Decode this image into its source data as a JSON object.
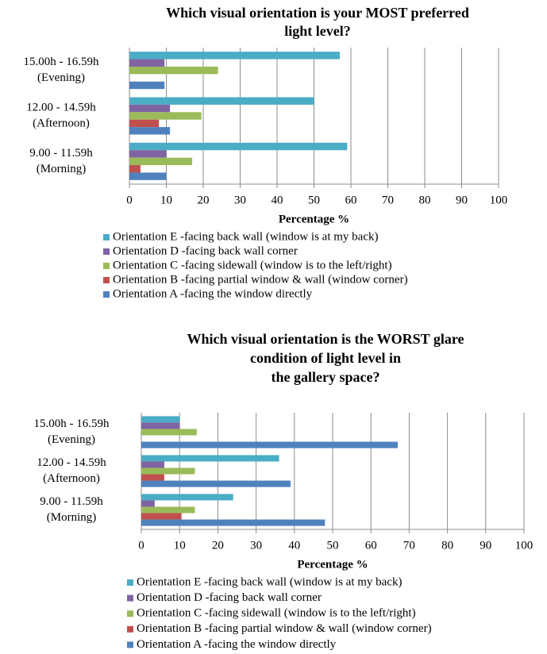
{
  "chart_data": [
    {
      "type": "bar",
      "orientation": "horizontal",
      "title": [
        "Which visual orientation  is your MOST preferred",
        "light level?"
      ],
      "xlabel": "Percentage %",
      "categories": [
        [
          "15.00h - 16.59h",
          "(Evening)"
        ],
        [
          "12.00 - 14.59h",
          "(Afternoon)"
        ],
        [
          "9.00 - 11.59h",
          "(Morning)"
        ]
      ],
      "series": [
        {
          "name": "Orientation E -facing back wall (window is at my back)",
          "color": "#4bacc6",
          "values": [
            57,
            50,
            59
          ]
        },
        {
          "name": "Orientation D -facing back wall corner",
          "color": "#8064a2",
          "values": [
            9.5,
            11,
            10
          ]
        },
        {
          "name": "Orientation C -facing sidewall (window is to the left/right)",
          "color": "#9bbb59",
          "values": [
            24,
            19.5,
            17
          ]
        },
        {
          "name": "Orientation B -facing partial window & wall (window corner)",
          "color": "#c0504d",
          "values": [
            0,
            8,
            3
          ]
        },
        {
          "name": "Orientation A -facing the window directly",
          "color": "#4f81bd",
          "values": [
            9.5,
            11,
            10
          ]
        }
      ],
      "xlim": [
        0,
        100
      ],
      "xticks": [
        0,
        10,
        20,
        30,
        40,
        50,
        60,
        70,
        80,
        90,
        100
      ],
      "grid": true,
      "legend": "bottom"
    },
    {
      "type": "bar",
      "orientation": "horizontal",
      "title": [
        "Which visual orientation is the WORST glare",
        "condition of light level in",
        "the gallery space?"
      ],
      "xlabel": "Percentage %",
      "categories": [
        [
          "15.00h - 16.59h",
          "(Evening)"
        ],
        [
          "12.00 - 14.59h",
          "(Afternoon)"
        ],
        [
          "9.00 - 11.59h",
          "(Morning)"
        ]
      ],
      "series": [
        {
          "name": "Orientation E -facing back wall (window is at my back)",
          "color": "#4bacc6",
          "values": [
            10,
            36,
            24
          ]
        },
        {
          "name": "Orientation D -facing back wall corner",
          "color": "#8064a2",
          "values": [
            10,
            6,
            3.5
          ]
        },
        {
          "name": "Orientation C -facing sidewall (window is to the left/right)",
          "color": "#9bbb59",
          "values": [
            14.5,
            14,
            14
          ]
        },
        {
          "name": "Orientation B -facing partial window & wall (window corner)",
          "color": "#c0504d",
          "values": [
            0,
            6,
            10.5
          ]
        },
        {
          "name": "Orientation A -facing the window directly",
          "color": "#4f81bd",
          "values": [
            67,
            39,
            48
          ]
        }
      ],
      "xlim": [
        0,
        100
      ],
      "xticks": [
        0,
        10,
        20,
        30,
        40,
        50,
        60,
        70,
        80,
        90,
        100
      ],
      "grid": true,
      "legend": "bottom"
    }
  ]
}
